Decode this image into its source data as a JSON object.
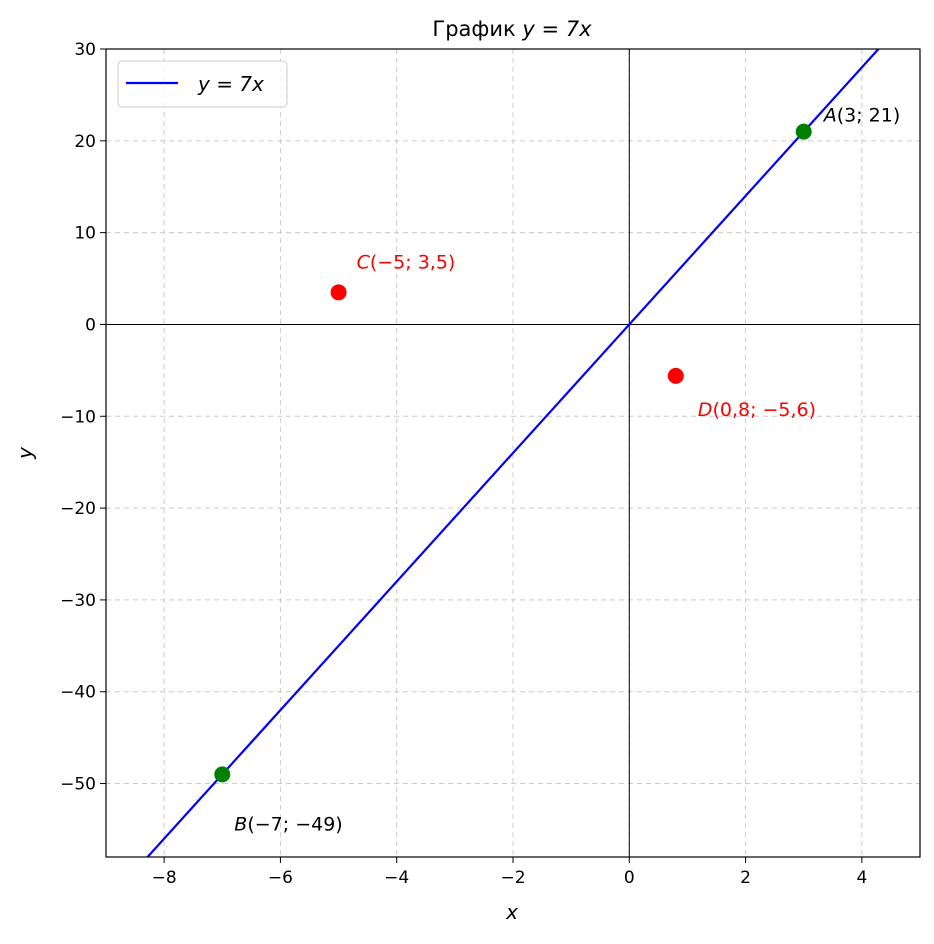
{
  "chart_data": {
    "type": "line",
    "title_prefix": "График",
    "title_math": "y = 7x",
    "xlabel": "x",
    "ylabel": "y",
    "xlim": [
      -9,
      5
    ],
    "ylim": [
      -58,
      30
    ],
    "xticks": [
      -8,
      -6,
      -4,
      -2,
      0,
      2,
      4
    ],
    "yticks": [
      -50,
      -40,
      -30,
      -20,
      -10,
      0,
      10,
      20,
      30
    ],
    "grid": true,
    "legend": {
      "position": "top-left",
      "entries": [
        {
          "label": "y = 7x",
          "color": "#0000ff"
        }
      ]
    },
    "series": [
      {
        "name": "y = 7x",
        "slope": 7,
        "intercept": 0,
        "color": "#0000ff"
      }
    ],
    "points": [
      {
        "name": "A",
        "coords": "(3;  21)",
        "x": 3,
        "y": 21,
        "color": "#008000",
        "label_color": "#000000"
      },
      {
        "name": "B",
        "coords": "(−7;  −49)",
        "x": -7,
        "y": -49,
        "color": "#008000",
        "label_color": "#000000"
      },
      {
        "name": "C",
        "coords": "(−5;  3,5)",
        "x": -5,
        "y": 3.5,
        "color": "#ff0000",
        "label_color": "#ff0000"
      },
      {
        "name": "D",
        "coords": "(0,8;  −5,6)",
        "x": 0.8,
        "y": -5.6,
        "color": "#ff0000",
        "label_color": "#ff0000"
      }
    ]
  }
}
